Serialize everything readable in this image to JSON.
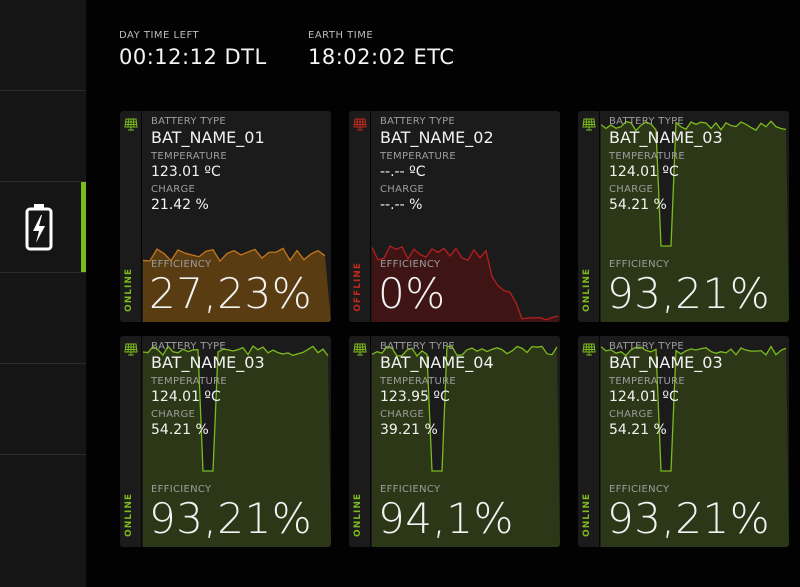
{
  "header": {
    "day_time": {
      "label": "DAY TIME LEFT",
      "value": "00:12:12 DTL"
    },
    "earth_time": {
      "label": "EARTH TIME",
      "value": "18:02:02 ETC"
    }
  },
  "labels": {
    "battery_type": "BATTERY TYPE",
    "temperature": "TEMPERATURE",
    "charge": "CHARGE",
    "efficiency": "EFFICIENCY"
  },
  "colors": {
    "online": "#7cbb1c",
    "offline": "#c0281f",
    "low": "#c4771e"
  },
  "cards": [
    {
      "name": "BAT_NAME_01",
      "temperature": "123.01 ºC",
      "charge": "21.42 %",
      "efficiency": "27,23%",
      "status": "ONLINE",
      "icon": "solar-panel-icon"
    },
    {
      "name": "BAT_NAME_02",
      "temperature": "--.-- ºC",
      "charge": "--.-- %",
      "efficiency": "0%",
      "status": "OFFLINE",
      "icon": "solar-panel-icon"
    },
    {
      "name": "BAT_NAME_03",
      "temperature": "124.01 ºC",
      "charge": "54.21 %",
      "efficiency": "93,21%",
      "status": "ONLINE",
      "icon": "solar-panel-icon"
    },
    {
      "name": "BAT_NAME_03",
      "temperature": "124.01 ºC",
      "charge": "54.21 %",
      "efficiency": "93,21%",
      "status": "ONLINE",
      "icon": "solar-panel-icon"
    },
    {
      "name": "BAT_NAME_04",
      "temperature": "123.95 ºC",
      "charge": "39.21 %",
      "efficiency": "94,1%",
      "status": "ONLINE",
      "icon": "solar-panel-icon"
    },
    {
      "name": "BAT_NAME_03",
      "temperature": "124.01 ºC",
      "charge": "54.21 %",
      "efficiency": "93,21%",
      "status": "ONLINE",
      "icon": "solar-panel-icon"
    }
  ],
  "sidebar": {
    "active_icon": "battery-charging-icon"
  }
}
